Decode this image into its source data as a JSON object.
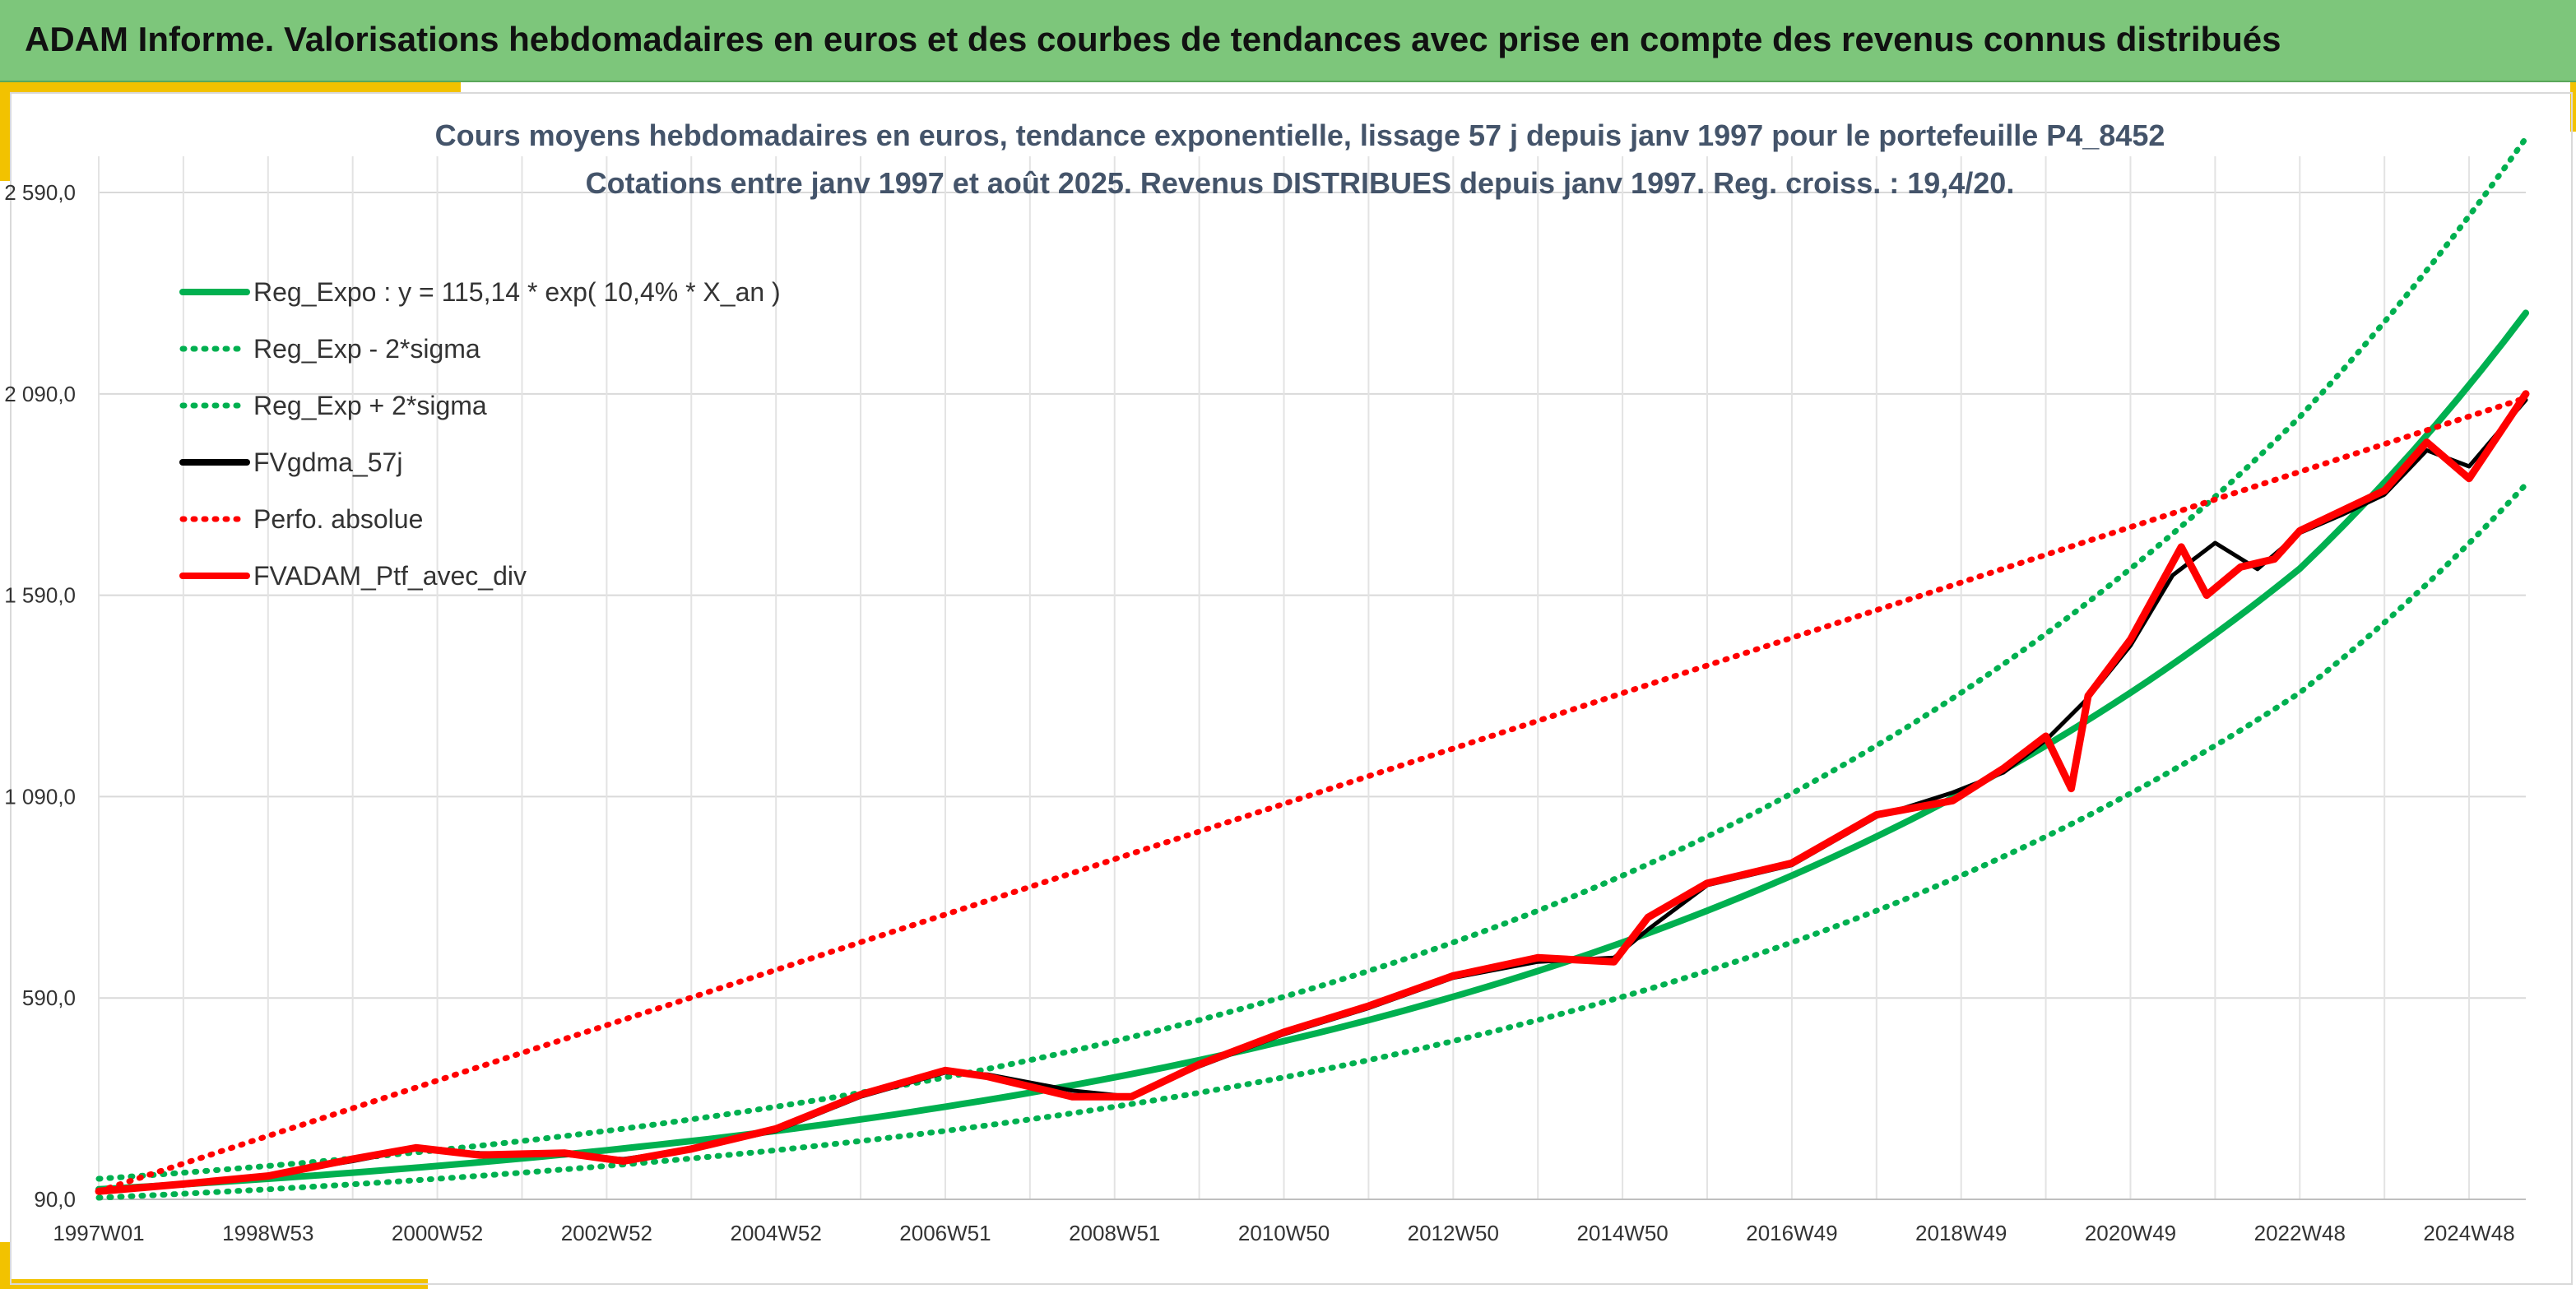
{
  "banner": {
    "title": "ADAM Informe. Valorisations hebdomadaires en euros et des courbes de tendances avec prise en compte des revenus connus distribués"
  },
  "colors": {
    "banner_bg": "#7dc67b",
    "accent_yellow": "#f2c200",
    "trend_green": "#00b050",
    "smooth_black": "#000000",
    "portfolio_red": "#ff0000"
  },
  "chart_data": {
    "type": "line",
    "title_line1": "Cours moyens hebdomadaires en euros, tendance exponentielle, lissage 57 j depuis janv 1997 pour le portefeuille P4_8452",
    "title_line2": "Cotations entre janv 1997 et août 2025. Revenus DISTRIBUES depuis janv 1997. Reg. croiss. : 19,4/20.",
    "xlabel": "",
    "ylabel": "",
    "x_ticks": [
      "1997W01",
      "1998W53",
      "2000W52",
      "2002W52",
      "2004W52",
      "2006W51",
      "2008W51",
      "2010W50",
      "2012W50",
      "2014W50",
      "2016W49",
      "2018W49",
      "2020W49",
      "2022W48",
      "2024W48"
    ],
    "y_ticks": [
      "90,0",
      "590,0",
      "1 090,0",
      "1 590,0",
      "2 090,0",
      "2 590,0"
    ],
    "ylim": [
      90,
      2680
    ],
    "xlim": [
      1997.0,
      2025.67
    ],
    "grid": true,
    "legend_position": "top-left",
    "series": [
      {
        "name": "Reg_Expo : y = 115,14 * exp( 10,4% *  X_an )",
        "style": "solid",
        "color": "#00b050",
        "x": [
          1997,
          1999,
          2001,
          2003,
          2005,
          2007,
          2009,
          2011,
          2013,
          2015,
          2017,
          2019,
          2021,
          2023,
          2025.67
        ],
        "values": [
          115,
          141,
          173,
          212,
          260,
          320,
          393,
          483,
          593,
          728,
          894,
          1098,
          1348,
          1656,
          2291
        ]
      },
      {
        "name": "Reg_Exp - 2*sigma",
        "style": "dotted",
        "color": "#00b050",
        "x": [
          1997,
          1999,
          2001,
          2003,
          2005,
          2007,
          2009,
          2011,
          2013,
          2015,
          2017,
          2019,
          2021,
          2023,
          2025.67
        ],
        "values": [
          94,
          115,
          141,
          173,
          212,
          260,
          320,
          393,
          483,
          593,
          728,
          894,
          1098,
          1348,
          1865
        ]
      },
      {
        "name": "Reg_Exp + 2*sigma",
        "style": "dotted",
        "color": "#00b050",
        "x": [
          1997,
          1999,
          2001,
          2003,
          2005,
          2007,
          2009,
          2011,
          2013,
          2015,
          2017,
          2019,
          2021,
          2023,
          2025.67
        ],
        "values": [
          141,
          173,
          212,
          260,
          320,
          393,
          483,
          593,
          728,
          894,
          1098,
          1348,
          1656,
          2033,
          2725
        ]
      },
      {
        "name": "FVgdma_57j",
        "style": "solid",
        "color": "#000000",
        "x": [
          1997,
          1998,
          1999,
          2000,
          2000.75,
          2001.5,
          2002.5,
          2003.2,
          2004,
          2005,
          2006,
          2007,
          2007.5,
          2008.5,
          2009.2,
          2010,
          2011,
          2012,
          2013,
          2014,
          2014.9,
          2015.3,
          2016,
          2017,
          2018,
          2018.9,
          2019.5,
          2020,
          2020.5,
          2021,
          2021.5,
          2022,
          2022.5,
          2023,
          2023.5,
          2024,
          2024.5,
          2025,
          2025.67
        ],
        "values": [
          110,
          125,
          150,
          185,
          215,
          205,
          200,
          190,
          215,
          260,
          345,
          405,
          400,
          360,
          345,
          420,
          500,
          565,
          640,
          680,
          690,
          760,
          870,
          920,
          1040,
          1100,
          1150,
          1230,
          1335,
          1465,
          1640,
          1720,
          1655,
          1745,
          1790,
          1840,
          1950,
          1910,
          2075
        ]
      },
      {
        "name": "Perfo. absolue",
        "style": "dotted",
        "color": "#ff0000",
        "x": [
          1997,
          2025.67
        ],
        "values": [
          110,
          2080
        ]
      },
      {
        "name": "FVADAM_Ptf_avec_div",
        "style": "solid",
        "color": "#ff0000",
        "x": [
          1997,
          1998,
          1999,
          2000,
          2000.75,
          2001.5,
          2002.5,
          2003.2,
          2004,
          2005,
          2006,
          2007,
          2007.5,
          2008.5,
          2009.2,
          2010,
          2011,
          2012,
          2013,
          2014,
          2014.9,
          2015.3,
          2016,
          2017,
          2018,
          2018.9,
          2019.5,
          2020,
          2020.3,
          2020.5,
          2021,
          2021.6,
          2021.9,
          2022.3,
          2022.7,
          2023,
          2023.5,
          2024,
          2024.5,
          2025,
          2025.67
        ],
        "values": [
          110,
          128,
          148,
          190,
          218,
          200,
          205,
          185,
          215,
          265,
          350,
          410,
          395,
          345,
          345,
          425,
          505,
          570,
          645,
          690,
          680,
          790,
          875,
          925,
          1045,
          1080,
          1160,
          1240,
          1110,
          1340,
          1480,
          1710,
          1590,
          1660,
          1680,
          1750,
          1800,
          1850,
          1970,
          1880,
          2090
        ]
      }
    ]
  }
}
